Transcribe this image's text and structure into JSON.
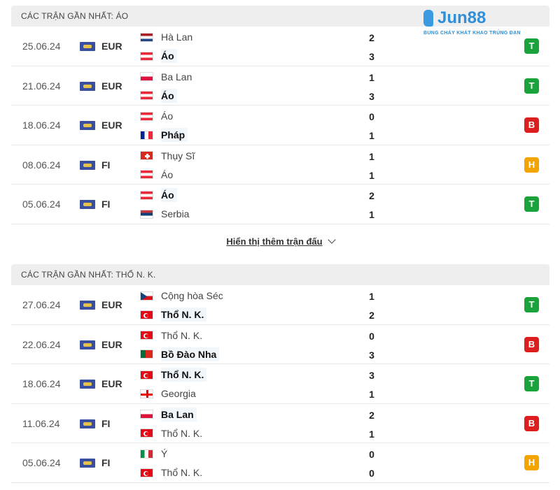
{
  "sections": [
    {
      "title": "CÁC TRẬN GẦN NHẤT: ÁO",
      "matches": [
        {
          "date": "25.06.24",
          "comp": "EUR",
          "home": "Hà Lan",
          "away": "Áo",
          "hs": "2",
          "as": "3",
          "hflag": "nl",
          "aflag": "at",
          "win": "away",
          "result": "T"
        },
        {
          "date": "21.06.24",
          "comp": "EUR",
          "home": "Ba Lan",
          "away": "Áo",
          "hs": "1",
          "as": "3",
          "hflag": "pl",
          "aflag": "at",
          "win": "away",
          "result": "T"
        },
        {
          "date": "18.06.24",
          "comp": "EUR",
          "home": "Áo",
          "away": "Pháp",
          "hs": "0",
          "as": "1",
          "hflag": "at",
          "aflag": "fr",
          "win": "away",
          "result": "B"
        },
        {
          "date": "08.06.24",
          "comp": "FI",
          "home": "Thụy Sĩ",
          "away": "Áo",
          "hs": "1",
          "as": "1",
          "hflag": "ch",
          "aflag": "at",
          "win": "",
          "result": "H"
        },
        {
          "date": "05.06.24",
          "comp": "FI",
          "home": "Áo",
          "away": "Serbia",
          "hs": "2",
          "as": "1",
          "hflag": "at",
          "aflag": "rs",
          "win": "home",
          "result": "T"
        }
      ],
      "more": "Hiển thị thêm trận đấu"
    },
    {
      "title": "CÁC TRẬN GẦN NHẤT: THỔ N. K.",
      "matches": [
        {
          "date": "27.06.24",
          "comp": "EUR",
          "home": "Cộng hòa Séc",
          "away": "Thổ N. K.",
          "hs": "1",
          "as": "2",
          "hflag": "cz",
          "aflag": "tr",
          "win": "away",
          "result": "T"
        },
        {
          "date": "22.06.24",
          "comp": "EUR",
          "home": "Thổ N. K.",
          "away": "Bồ Đào Nha",
          "hs": "0",
          "as": "3",
          "hflag": "tr",
          "aflag": "pt",
          "win": "away",
          "result": "B"
        },
        {
          "date": "18.06.24",
          "comp": "EUR",
          "home": "Thổ N. K.",
          "away": "Georgia",
          "hs": "3",
          "as": "1",
          "hflag": "tr",
          "aflag": "ge",
          "win": "home",
          "result": "T"
        },
        {
          "date": "11.06.24",
          "comp": "FI",
          "home": "Ba Lan",
          "away": "Thổ N. K.",
          "hs": "2",
          "as": "1",
          "hflag": "pl",
          "aflag": "tr",
          "win": "home",
          "result": "B"
        },
        {
          "date": "05.06.24",
          "comp": "FI",
          "home": "Ý",
          "away": "Thổ N. K.",
          "hs": "0",
          "as": "0",
          "hflag": "it",
          "aflag": "tr",
          "win": "",
          "result": "H"
        }
      ]
    }
  ],
  "result_colors": {
    "T": "#1aa33b",
    "B": "#dc1e1e",
    "H": "#f2a500"
  },
  "logo": {
    "brand": "Jun88",
    "tagline": "BUNG CHÁY KHÁT KHAO TRÚNG ĐẠN"
  }
}
